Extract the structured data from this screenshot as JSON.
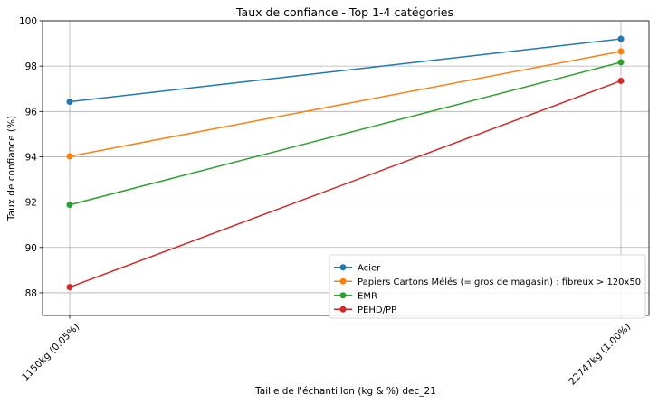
{
  "chart_data": {
    "type": "line",
    "title": "Taux de confiance - Top 1-4 catégories",
    "xlabel": "Taille de l'échantillon (kg & %) dec_21",
    "ylabel": "Taux de confiance (%)",
    "categories": [
      "1150kg (0.05%)",
      "22747kg (1.00%)"
    ],
    "ylim": [
      87,
      100
    ],
    "yticks": [
      88,
      90,
      92,
      94,
      96,
      98,
      100
    ],
    "grid": true,
    "legend_position": "lower-right",
    "series": [
      {
        "name": "Acier",
        "values": [
          96.43,
          99.2
        ],
        "color": "#1f77b4"
      },
      {
        "name": "Papiers Cartons Mélés (= gros de magasin) : fibreux > 120x50",
        "values": [
          94.02,
          98.65
        ],
        "color": "#ff7f0e"
      },
      {
        "name": "EMR",
        "values": [
          91.88,
          98.17
        ],
        "color": "#2ca02c"
      },
      {
        "name": "PEHD/PP",
        "values": [
          88.25,
          97.35
        ],
        "color": "#d62728"
      }
    ]
  }
}
